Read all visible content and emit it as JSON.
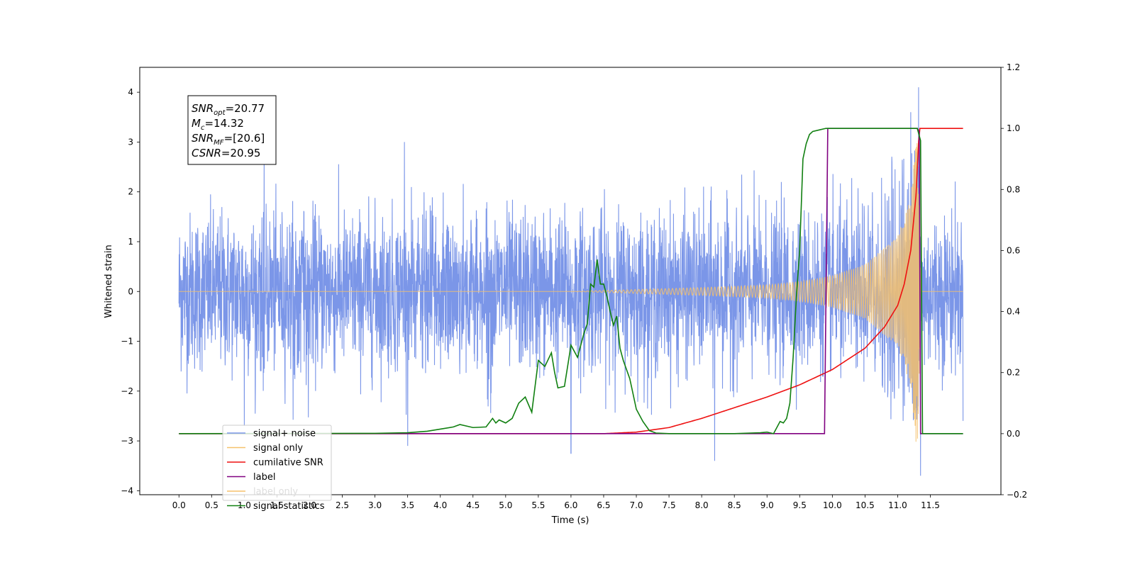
{
  "chart_data": {
    "type": "line",
    "xlabel": "Time (s)",
    "ylabel": "Whitened strain",
    "xlim": [
      -0.6,
      12.58
    ],
    "ylim": [
      -4.08,
      4.5
    ],
    "ylim_right": [
      -0.2,
      1.2
    ],
    "x_ticks": [
      "0.0",
      "0.5",
      "1.0",
      "1.5",
      "2.0",
      "2.5",
      "3.0",
      "3.5",
      "4.0",
      "4.5",
      "5.0",
      "5.5",
      "6.0",
      "6.5",
      "7.0",
      "7.5",
      "8.0",
      "8.5",
      "9.0",
      "9.5",
      "10.0",
      "10.5",
      "11.0",
      "11.5"
    ],
    "y_ticks_left": [
      "4",
      "3",
      "2",
      "1",
      "0",
      "−1",
      "−2",
      "−3",
      "−4"
    ],
    "y_ticks_right": [
      "1.2",
      "1.0",
      "0.8",
      "0.6",
      "0.4",
      "0.2",
      "0.0",
      "−0.2"
    ],
    "annotation_box": {
      "lines": [
        {
          "name": "SNR",
          "sub": "opt",
          "value": "=20.77"
        },
        {
          "name": "M",
          "sub": "c",
          "value": "=14.32"
        },
        {
          "name": "SNR",
          "sub": "MF",
          "value": "=[20.6]"
        },
        {
          "name": "CSNR",
          "sub": "",
          "value": "=20.95"
        }
      ]
    },
    "legend": {
      "placement": "lower-left",
      "entries": [
        {
          "label": "signal+ noise",
          "color": "#7b96e8"
        },
        {
          "label": "signal only",
          "color": "#f5c16c"
        },
        {
          "label": "cumilative SNR",
          "color": "#ee1111"
        },
        {
          "label": "label",
          "color": "#800080"
        },
        {
          "label": "label only",
          "color": "#f5c16c"
        },
        {
          "label": "signal statistics",
          "color": "#118011"
        }
      ]
    },
    "series": [
      {
        "name": "signal+ noise",
        "axis": "left",
        "color": "#7b96e8",
        "description": "Gaussian noise, std ~0.8, spanning 0 to 12.0 s, with chirp added",
        "x_range": [
          0,
          12.0
        ],
        "extremes": [
          [
            1.0,
            -2.7
          ],
          [
            3.45,
            3.0
          ],
          [
            3.5,
            -3.1
          ],
          [
            6.0,
            -3.25
          ],
          [
            8.2,
            -3.4
          ],
          [
            11.2,
            3.6
          ],
          [
            11.32,
            4.1
          ],
          [
            11.35,
            -3.7
          ]
        ]
      },
      {
        "name": "signal only",
        "axis": "left",
        "color": "#f5c16c",
        "description": "Chirp, amplitude rising from ~0 at 6 s to ~3.3 at 11.3 s, zero afterwards",
        "x_range": [
          0,
          12.0
        ],
        "envelope": [
          [
            6.0,
            0.0
          ],
          [
            7.0,
            0.04
          ],
          [
            8.0,
            0.08
          ],
          [
            9.0,
            0.13
          ],
          [
            9.5,
            0.2
          ],
          [
            10.0,
            0.32
          ],
          [
            10.5,
            0.55
          ],
          [
            11.0,
            1.1
          ],
          [
            11.2,
            1.9
          ],
          [
            11.3,
            3.3
          ],
          [
            11.36,
            0.0
          ]
        ]
      },
      {
        "name": "cumilative SNR",
        "axis": "right",
        "x": [
          0,
          6.5,
          7.0,
          7.5,
          8.0,
          8.5,
          9.0,
          9.5,
          10.0,
          10.5,
          10.8,
          11.0,
          11.1,
          11.2,
          11.28,
          11.33,
          11.34,
          12.0
        ],
        "values": [
          0,
          0,
          0.005,
          0.02,
          0.05,
          0.085,
          0.12,
          0.16,
          0.21,
          0.28,
          0.35,
          0.42,
          0.49,
          0.6,
          0.78,
          1.0,
          1.0,
          1.0
        ]
      },
      {
        "name": "label",
        "axis": "right",
        "x": [
          0,
          9.88,
          9.93,
          11.3,
          11.33,
          11.35,
          12.0
        ],
        "values": [
          0,
          0,
          1.0,
          1.0,
          0.99,
          0.0,
          0.0
        ]
      },
      {
        "name": "signal statistics",
        "axis": "right",
        "x": [
          0,
          3.0,
          3.5,
          3.8,
          4.0,
          4.2,
          4.3,
          4.5,
          4.7,
          4.8,
          4.85,
          4.9,
          5.0,
          5.1,
          5.2,
          5.3,
          5.4,
          5.5,
          5.6,
          5.7,
          5.75,
          5.8,
          5.9,
          6.0,
          6.1,
          6.2,
          6.25,
          6.3,
          6.35,
          6.4,
          6.45,
          6.5,
          6.55,
          6.6,
          6.65,
          6.7,
          6.75,
          6.8,
          6.9,
          7.0,
          7.1,
          7.2,
          7.3,
          7.5,
          8.0,
          8.5,
          8.9,
          9.0,
          9.1,
          9.2,
          9.25,
          9.3,
          9.35,
          9.4,
          9.45,
          9.5,
          9.55,
          9.6,
          9.65,
          9.7,
          9.8,
          9.9,
          10.0,
          11.0,
          11.25,
          11.3,
          11.35,
          11.38,
          12.0
        ],
        "values": [
          0,
          0.001,
          0.003,
          0.008,
          0.015,
          0.022,
          0.03,
          0.02,
          0.022,
          0.05,
          0.035,
          0.045,
          0.035,
          0.05,
          0.1,
          0.12,
          0.07,
          0.24,
          0.22,
          0.265,
          0.2,
          0.15,
          0.155,
          0.29,
          0.25,
          0.33,
          0.36,
          0.49,
          0.48,
          0.57,
          0.49,
          0.49,
          0.45,
          0.4,
          0.355,
          0.385,
          0.28,
          0.24,
          0.18,
          0.08,
          0.04,
          0.01,
          0.002,
          0,
          0,
          0,
          0.003,
          0.005,
          0,
          0.04,
          0.035,
          0.05,
          0.1,
          0.25,
          0.45,
          0.6,
          0.9,
          0.95,
          0.98,
          0.99,
          0.995,
          1.0,
          1.0,
          1.0,
          1.0,
          1.0,
          0.96,
          0.0,
          0.0
        ]
      }
    ]
  }
}
